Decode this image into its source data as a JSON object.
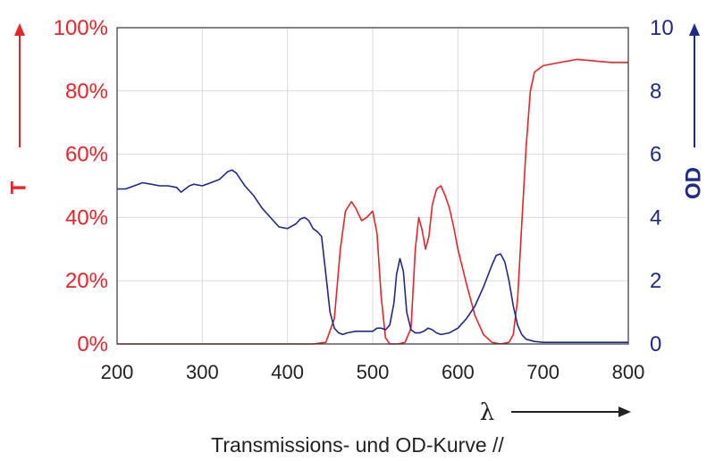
{
  "chart_data": {
    "type": "line",
    "xlabel": "λ",
    "ylabel_left": "T",
    "ylabel_right": "OD",
    "caption": "Transmissions- und OD-Kurve //",
    "xlim": [
      200,
      800
    ],
    "ylim_left": [
      0,
      100
    ],
    "ylim_right": [
      0,
      10
    ],
    "grid": true,
    "x_ticks": [
      200,
      300,
      400,
      500,
      600,
      700,
      800
    ],
    "x_tick_labels": [
      "200",
      "300",
      "400",
      "500",
      "600",
      "700",
      "800"
    ],
    "left_ticks": [
      0,
      20,
      40,
      60,
      80,
      100
    ],
    "left_tick_labels": [
      "0%",
      "20%",
      "40%",
      "60%",
      "80%",
      "100%"
    ],
    "right_ticks": [
      0,
      2,
      4,
      6,
      8,
      10
    ],
    "right_tick_labels": [
      "0",
      "2",
      "4",
      "6",
      "8",
      "10"
    ],
    "colors": {
      "transmission": "#e8232a",
      "od": "#1f2a86",
      "grid": "#d9d9d9",
      "axis": "#333333"
    },
    "series": [
      {
        "name": "T",
        "axis": "left",
        "color": "#e8232a",
        "x": [
          200,
          430,
          445,
          455,
          462,
          468,
          475,
          480,
          487,
          493,
          500,
          505,
          510,
          515,
          520,
          530,
          538,
          545,
          550,
          554,
          558,
          562,
          566,
          570,
          575,
          580,
          585,
          590,
          595,
          600,
          610,
          620,
          630,
          640,
          650,
          660,
          665,
          670,
          675,
          680,
          685,
          690,
          700,
          720,
          740,
          760,
          780,
          800
        ],
        "y": [
          0,
          0,
          0.5,
          8,
          30,
          42,
          45,
          43,
          39,
          40,
          42,
          35,
          15,
          2,
          0,
          0,
          0.5,
          5,
          30,
          40,
          36,
          30,
          34,
          44,
          49,
          50,
          47,
          43,
          37,
          30,
          19,
          9,
          3,
          0.5,
          0,
          0.5,
          3,
          14,
          38,
          62,
          80,
          86,
          88,
          89,
          90,
          89.5,
          89,
          89
        ]
      },
      {
        "name": "OD",
        "axis": "right",
        "color": "#1f2a86",
        "x": [
          200,
          210,
          220,
          230,
          240,
          250,
          260,
          270,
          275,
          280,
          285,
          290,
          300,
          310,
          320,
          330,
          335,
          340,
          345,
          350,
          360,
          370,
          380,
          390,
          400,
          410,
          415,
          420,
          425,
          430,
          435,
          440,
          445,
          450,
          455,
          460,
          465,
          470,
          480,
          490,
          500,
          505,
          510,
          515,
          520,
          525,
          528,
          532,
          536,
          540,
          545,
          550,
          555,
          560,
          565,
          570,
          575,
          580,
          590,
          600,
          610,
          620,
          630,
          640,
          645,
          650,
          655,
          660,
          665,
          670,
          675,
          680,
          690,
          700,
          720,
          740,
          760,
          780,
          800
        ],
        "y": [
          4.9,
          4.9,
          5.0,
          5.1,
          5.05,
          5.0,
          5.0,
          4.95,
          4.8,
          4.9,
          5.0,
          5.05,
          5.0,
          5.1,
          5.2,
          5.45,
          5.5,
          5.4,
          5.2,
          5.0,
          4.7,
          4.3,
          4.0,
          3.7,
          3.65,
          3.8,
          3.95,
          4.0,
          3.9,
          3.65,
          3.55,
          3.4,
          2.2,
          1.0,
          0.5,
          0.35,
          0.3,
          0.35,
          0.4,
          0.4,
          0.4,
          0.5,
          0.5,
          0.45,
          0.6,
          1.3,
          2.2,
          2.7,
          2.3,
          1.0,
          0.45,
          0.35,
          0.35,
          0.4,
          0.5,
          0.45,
          0.35,
          0.3,
          0.35,
          0.5,
          0.8,
          1.2,
          1.8,
          2.5,
          2.8,
          2.85,
          2.6,
          2.0,
          1.2,
          0.6,
          0.3,
          0.15,
          0.08,
          0.05,
          0.05,
          0.05,
          0.05,
          0.05,
          0.05
        ]
      }
    ]
  }
}
